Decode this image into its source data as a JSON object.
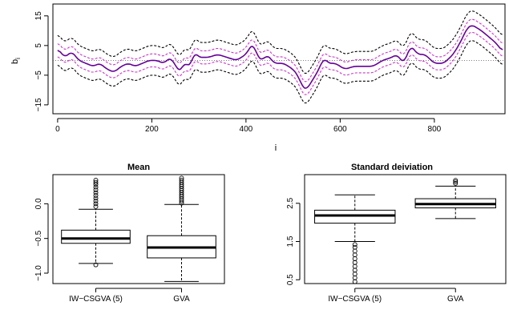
{
  "chart_data": [
    {
      "type": "line",
      "xlabel": "i",
      "ylabel": "b_i",
      "ylabel_main": "b",
      "ylabel_sub": "i",
      "xlim": [
        -10,
        950
      ],
      "ylim": [
        -18,
        19
      ],
      "x_ticks": [
        0,
        200,
        400,
        600,
        800
      ],
      "y_ticks": [
        -15,
        -5,
        5,
        15
      ],
      "reference_line_y": 0,
      "knots": {
        "x": [
          0,
          15,
          30,
          45,
          60,
          75,
          90,
          105,
          120,
          135,
          150,
          165,
          180,
          195,
          210,
          225,
          240,
          255,
          262,
          270,
          280,
          290,
          300,
          320,
          340,
          360,
          380,
          400,
          415,
          425,
          435,
          445,
          460,
          480,
          500,
          510,
          520,
          528,
          540,
          555,
          565,
          575,
          590,
          610,
          630,
          650,
          670,
          690,
          710,
          720,
          735,
          750,
          765,
          780,
          800,
          820,
          840,
          855,
          870,
          880,
          890,
          900,
          915,
          930,
          945
        ],
        "y": [
          4,
          1,
          3,
          0,
          -1,
          -2,
          -1,
          -3,
          -4,
          -2,
          -1,
          -2,
          -1,
          0,
          0,
          -1,
          1,
          -3,
          -4,
          0,
          -3,
          3,
          1,
          1,
          2,
          1,
          0,
          2,
          6,
          1,
          0,
          2,
          -1,
          -1,
          -3,
          -5,
          -9,
          -10,
          -7,
          -3,
          1,
          -1,
          -1,
          -3,
          -2,
          -2,
          -2,
          0,
          1,
          2,
          -1,
          5,
          2,
          2,
          -1,
          -1,
          2,
          6,
          11,
          12,
          11,
          10,
          8,
          6,
          3
        ]
      },
      "series": [
        {
          "name": "",
          "color": "#660099",
          "style": "solid",
          "offset": 0
        },
        {
          "name": "",
          "color": "#cc33cc",
          "style": "dashed",
          "offset": 2.2
        },
        {
          "name": "",
          "color": "#cc33cc",
          "style": "dashed",
          "offset": -2.2
        },
        {
          "name": "",
          "color": "#000000",
          "style": "dashed",
          "offset": 5
        },
        {
          "name": "",
          "color": "#000000",
          "style": "dashed",
          "offset": -5
        }
      ]
    },
    {
      "type": "box",
      "title": "Mean",
      "categories": [
        "IW−CSGVA (5)",
        "GVA"
      ],
      "y_ticks": [
        0.0,
        -0.5,
        -1.0
      ],
      "y_tick_labels": [
        "0.0",
        "−0.5",
        "−1.0"
      ],
      "ylim": [
        -1.15,
        0.42
      ],
      "boxes": [
        {
          "whisker_low": -0.86,
          "q1": -0.57,
          "median": -0.5,
          "q3": -0.38,
          "whisker_high": -0.08,
          "outliers_high": [
            -0.04,
            0.0,
            0.04,
            0.08,
            0.12,
            0.16,
            0.2,
            0.24,
            0.28,
            0.31,
            0.34
          ],
          "outliers_low": [
            -0.88
          ]
        },
        {
          "whisker_low": -1.12,
          "q1": -0.78,
          "median": -0.63,
          "q3": -0.46,
          "whisker_high": -0.01,
          "outliers_high": [
            0.01,
            0.04,
            0.07,
            0.1,
            0.13,
            0.16,
            0.19,
            0.22,
            0.25,
            0.28,
            0.31,
            0.34,
            0.37
          ],
          "outliers_low": []
        }
      ]
    },
    {
      "type": "box",
      "title": "Standard deiviation",
      "categories": [
        "IW−CSGVA (5)",
        "GVA"
      ],
      "y_ticks": [
        0.5,
        1.5,
        2.5
      ],
      "y_tick_labels": [
        "0.5",
        "1.5",
        "2.5"
      ],
      "ylim": [
        0.4,
        3.25
      ],
      "boxes": [
        {
          "whisker_low": 1.5,
          "q1": 1.98,
          "median": 2.18,
          "q3": 2.32,
          "whisker_high": 2.72,
          "outliers_high": [],
          "outliers_low": [
            0.45,
            0.55,
            0.65,
            0.75,
            0.85,
            0.95,
            1.05,
            1.15,
            1.25,
            1.35,
            1.42
          ]
        },
        {
          "whisker_low": 2.1,
          "q1": 2.38,
          "median": 2.48,
          "q3": 2.62,
          "whisker_high": 2.95,
          "outliers_high": [
            3.02,
            3.06,
            3.1
          ],
          "outliers_low": []
        }
      ]
    }
  ]
}
